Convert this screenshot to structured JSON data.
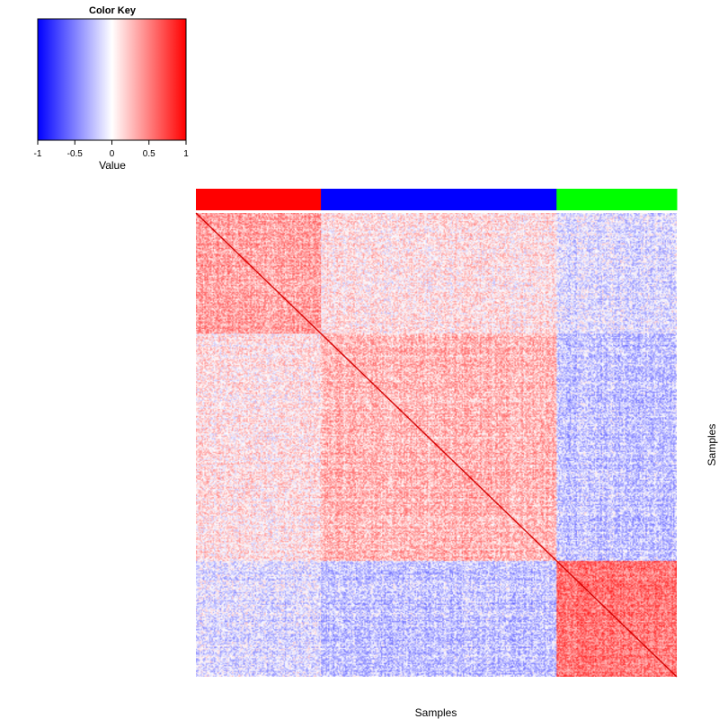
{
  "chart_data": {
    "type": "heatmap",
    "title": "",
    "xlabel": "Samples",
    "ylabel": "Samples",
    "value_range": [
      -1,
      1
    ],
    "symmetric": true,
    "diagonal_value": 1,
    "groups": [
      {
        "color": "#ff0000",
        "fraction": 0.26
      },
      {
        "color": "#0000ff",
        "fraction": 0.49
      },
      {
        "color": "#00ff00",
        "fraction": 0.25
      }
    ],
    "block_means": [
      [
        0.35,
        0.1,
        -0.12
      ],
      [
        0.1,
        0.28,
        -0.22
      ],
      [
        -0.12,
        -0.22,
        0.55
      ]
    ],
    "color_scale": {
      "low": "#0000ff",
      "mid": "#ffffff",
      "high": "#ff0000"
    },
    "color_key": {
      "title": "Color Key",
      "axis_label": "Value",
      "ticks": [
        "-1",
        "-0.5",
        "0",
        "0.5",
        "1"
      ],
      "tick_values": [
        -1,
        -0.5,
        0,
        0.5,
        1
      ]
    }
  }
}
